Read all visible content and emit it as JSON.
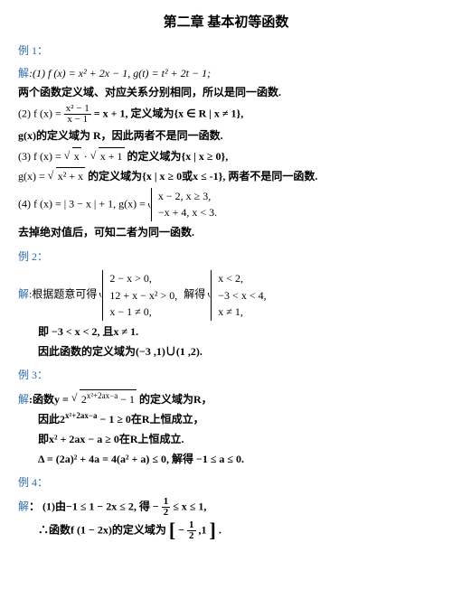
{
  "title": "第二章 基本初等函数",
  "colors": {
    "label": "#2e6ab0",
    "text": "#000000",
    "bg": "#ffffff"
  },
  "typography": {
    "body_fontsize_pt": 9,
    "title_fontsize_pt": 11
  },
  "ex1": {
    "label": "例 1：",
    "ans": "解",
    "p1a": ":(1) f (x) = x² + 2x − 1, g(t) = t² + 2t − 1;",
    "p1b": "两个函数定义域、对应关系分别相同，所以是同一函数.",
    "p2a_pre": "(2) f (x) = ",
    "p2a_num": "x² − 1",
    "p2a_den": "x − 1",
    "p2a_post": " = x + 1,  定义域为{x ∈ R | x ≠ 1},",
    "p2b": "g(x)的定义域为 R，因此两者不是同一函数.",
    "p3a_pre": "(3) f (x) = ",
    "p3a_r1": "x",
    "p3a_mid": " · ",
    "p3a_r2": "x + 1",
    "p3a_post": "的定义域为{x | x ≥ 0},",
    "p3b_pre": "g(x) = ",
    "p3b_r": "x² + x",
    "p3b_post": "的定义域为{x | x ≥ 0或x ≤ -1},  两者不是同一函数.",
    "p4a": "(4) f (x) = | 3 − x | + 1, g(x) = ",
    "p4b1": "x − 2, x ≥ 3,",
    "p4b2": "−x + 4, x < 3.",
    "p4c": "去掉绝对值后，可知二者为同一函数."
  },
  "ex2": {
    "label": "例 2：",
    "ans": "解",
    "lead": ":根据题意可得",
    "sys1_r1": "2 − x > 0,",
    "sys1_r2": "12 + x − x² > 0,",
    "sys1_r3": "x − 1 ≠ 0,",
    "mid": " 解得",
    "sys2_r1": "x < 2,",
    "sys2_r2": "−3 < x < 4,",
    "sys2_r3": "x ≠ 1,",
    "c1": "即 −3 < x < 2,  且x ≠ 1.",
    "c2": "因此函数的定义域为(−3 ,1)∪(1 ,2)."
  },
  "ex3": {
    "label": "例 3：",
    "ans": "解",
    "p1_pre": ":函数y = ",
    "p1_rad": "2",
    "p1_exp": "x²+2ax−a",
    "p1_radpost": " − 1",
    "p1_post": "的定义域为R，",
    "p2_pre": "因此2",
    "p2_exp": "x²+2ax−a",
    "p2_post": " − 1 ≥ 0在R上恒成立，",
    "p3": "即x² + 2ax − a ≥ 0在R上恒成立.",
    "p4": "Δ = (2a)² + 4a = 4(a² + a) ≤ 0,  解得 −1 ≤ a ≤ 0."
  },
  "ex4": {
    "label": "例 4：",
    "ans": "解",
    "p1a": "：  (1)由−1 ≤ 1 − 2x ≤ 2, 得 − ",
    "p1_f1n": "1",
    "p1_f1d": "2",
    "p1b": " ≤ x ≤ 1,",
    "p2a": "∴函数f (1 − 2x)的定义域为",
    "p2b": "− ",
    "p2_f1n": "1",
    "p2_f1d": "2",
    "p2c": " ,1",
    "p2d": "."
  }
}
